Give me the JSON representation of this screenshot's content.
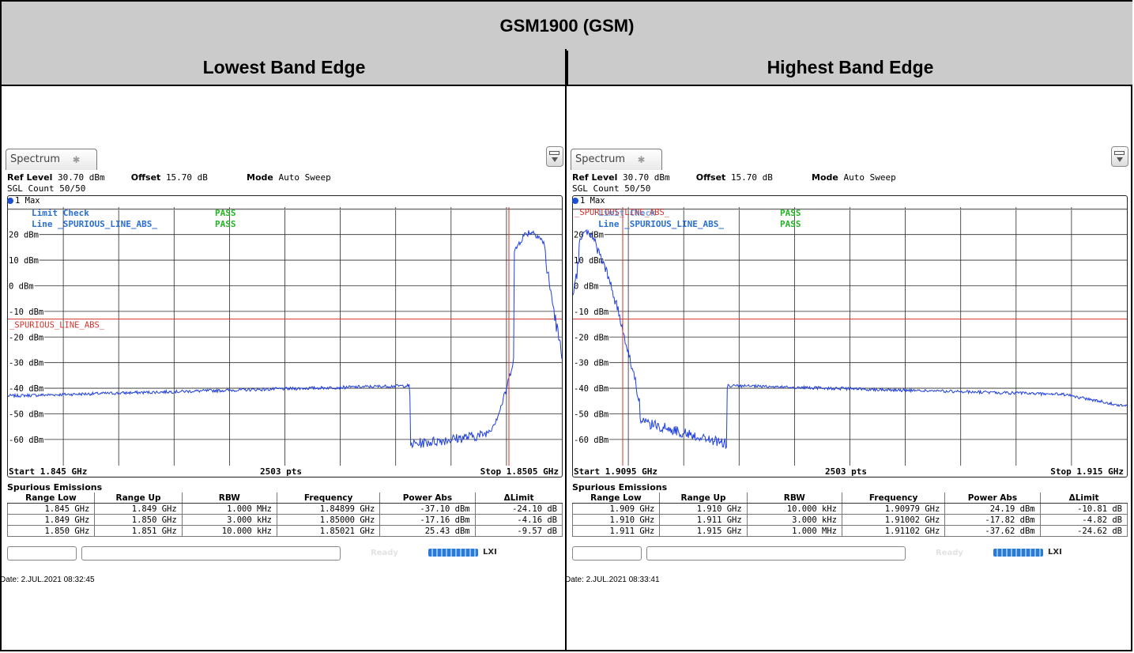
{
  "title": "GSM1900 (GSM)",
  "headers": {
    "left": "Lowest Band Edge",
    "right": "Highest Band Edge"
  },
  "panels": [
    {
      "tab_label": "Spectrum",
      "ref_level_label": "Ref Level",
      "ref_level_value": "30.70 dBm",
      "offset_label": "Offset",
      "offset_value": "15.70 dB",
      "mode_label": "Mode",
      "mode_value": "Auto Sweep",
      "sgl_count": "SGL Count 50/50",
      "trace_label": "1 Max",
      "limit_check_label": "Limit Check",
      "limit_check_result": "PASS",
      "line_label": "Line _SPURIOUS_LINE_ABS_",
      "line_result": "PASS",
      "limit_line_name": "_SPURIOUS_LINE_ABS_",
      "start_label": "Start 1.845 GHz",
      "pts_label": "2503 pts",
      "stop_label": "Stop 1.8505 GHz",
      "se_title": "Spurious Emissions",
      "se_columns": [
        "Range Low",
        "Range Up",
        "RBW",
        "Frequency",
        "Power Abs",
        "ΔLimit"
      ],
      "se_rows": [
        [
          "1.845 GHz",
          "1.849 GHz",
          "1.000 MHz",
          "1.84899 GHz",
          "-37.10 dBm",
          "-24.10 dB"
        ],
        [
          "1.849 GHz",
          "1.850 GHz",
          "3.000 kHz",
          "1.85000 GHz",
          "-17.16 dBm",
          "-4.16 dB"
        ],
        [
          "1.850 GHz",
          "1.851 GHz",
          "10.000 kHz",
          "1.85021 GHz",
          "25.43 dBm",
          "-9.57 dB"
        ]
      ],
      "status_ready": "Ready",
      "status_lxi": "LXI",
      "date": "Date: 2.JUL.2021  08:32:45",
      "y_ticks": [
        "20 dBm",
        "10 dBm",
        "0 dBm",
        "-10 dBm",
        "-20 dBm",
        "-30 dBm",
        "-40 dBm",
        "-50 dBm",
        "-60 dBm"
      ],
      "limit_dbm": -13,
      "spectrum_shape": "lowest"
    },
    {
      "tab_label": "Spectrum",
      "ref_level_label": "Ref Level",
      "ref_level_value": "30.70 dBm",
      "offset_label": "Offset",
      "offset_value": "15.70 dB",
      "mode_label": "Mode",
      "mode_value": "Auto Sweep",
      "sgl_count": "SGL Count 50/50",
      "trace_label": "1 Max",
      "limit_check_label": "Limit Check",
      "limit_check_result": "PASS",
      "line_label": "Line _SPURIOUS_LINE_ABS_",
      "line_result": "PASS",
      "limit_line_name": "_SPURIOUS_LINE_ABS_",
      "start_label": "Start 1.9095 GHz",
      "pts_label": "2503 pts",
      "stop_label": "Stop 1.915 GHz",
      "se_title": "Spurious Emissions",
      "se_columns": [
        "Range Low",
        "Range Up",
        "RBW",
        "Frequency",
        "Power Abs",
        "ΔLimit"
      ],
      "se_rows": [
        [
          "1.909 GHz",
          "1.910 GHz",
          "10.000 kHz",
          "1.90979 GHz",
          "24.19 dBm",
          "-10.81 dB"
        ],
        [
          "1.910 GHz",
          "1.911 GHz",
          "3.000 kHz",
          "1.91002 GHz",
          "-17.82 dBm",
          "-4.82 dB"
        ],
        [
          "1.911 GHz",
          "1.915 GHz",
          "1.000 MHz",
          "1.91102 GHz",
          "-37.62 dBm",
          "-24.62 dB"
        ]
      ],
      "status_ready": "Ready",
      "status_lxi": "LXI",
      "date": "Date: 2.JUL.2021  08:33:41",
      "y_ticks": [
        "20 dBm",
        "10 dBm",
        "0 dBm",
        "-10 dBm",
        "-20 dBm",
        "-30 dBm",
        "-40 dBm",
        "-50 dBm",
        "-60 dBm"
      ],
      "limit_dbm": -13,
      "spectrum_shape": "highest"
    }
  ],
  "colors": {
    "header_bg": "#cbcbcb",
    "trace": "#1f3fe0",
    "limit_line": "#d0342c",
    "pass": "#22b422",
    "label_blue": "#2a6fcf"
  }
}
